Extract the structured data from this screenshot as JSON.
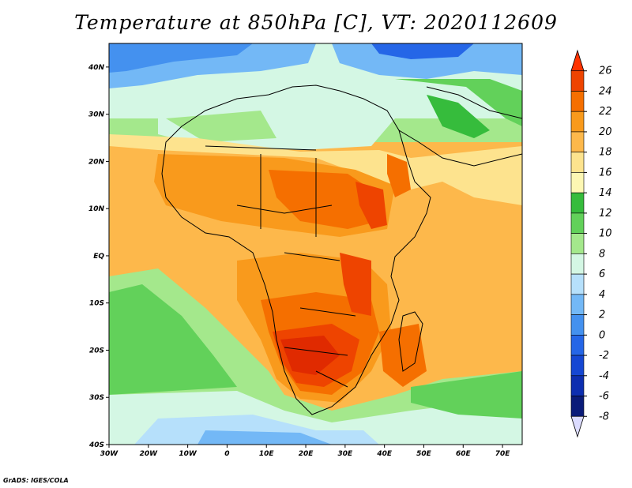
{
  "title": "Temperature at 850hPa [C], VT: 2020112609",
  "credit": "GrADS: IGES/COLA",
  "map": {
    "lat_labels": [
      "40N",
      "30N",
      "20N",
      "10N",
      "EQ",
      "10S",
      "20S",
      "30S",
      "40S"
    ],
    "lon_labels": [
      "30W",
      "20W",
      "10W",
      "0",
      "10E",
      "20E",
      "30E",
      "40E",
      "50E",
      "60E",
      "70E"
    ],
    "lat_range": [
      -40,
      45
    ],
    "lon_range": [
      -30,
      75
    ]
  },
  "colorbar": {
    "labels": [
      "26",
      "24",
      "22",
      "20",
      "18",
      "16",
      "14",
      "12",
      "10",
      "8",
      "6",
      "4",
      "2",
      "0",
      "-2",
      "-4",
      "-6",
      "-8"
    ],
    "colors": [
      "#ff3300",
      "#ee4400",
      "#f56f00",
      "#f99a1c",
      "#fdb84b",
      "#fde38e",
      "#fdf7b3",
      "#36bc3c",
      "#62d15a",
      "#a4e88c",
      "#d4f7e4",
      "#b6e0fb",
      "#73b8f6",
      "#4491ef",
      "#2566e7",
      "#1547d3",
      "#0d2eb0",
      "#0a1b79",
      "#dcdcff"
    ]
  }
}
